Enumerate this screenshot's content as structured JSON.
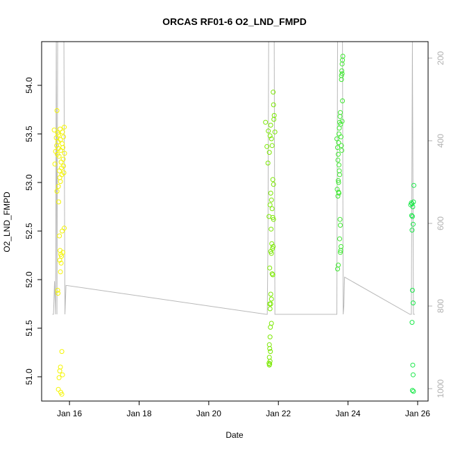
{
  "chart_data": {
    "type": "scatter",
    "title": "ORCAS RF01-6 O2_LND_FMPD",
    "xlabel": "Date",
    "ylabel": "O2_LND_FMPD",
    "x_ticks": [
      "Jan 16",
      "Jan 18",
      "Jan 20",
      "Jan 22",
      "Jan 24",
      "Jan 26"
    ],
    "x_tick_days": [
      16,
      18,
      20,
      22,
      24,
      26
    ],
    "xlim": [
      15.2,
      26.3
    ],
    "ylim": [
      50.75,
      54.45
    ],
    "y_ticks": [
      51.0,
      51.5,
      52.0,
      52.5,
      53.0,
      53.5,
      54.0
    ],
    "y_tick_labels": [
      "51.0",
      "51.5",
      "52.0",
      "52.5",
      "53.0",
      "53.5",
      "54.0"
    ],
    "y2_lim": [
      1030,
      160
    ],
    "y2_ticks": [
      200,
      400,
      600,
      800,
      1000
    ],
    "y2_tick_labels": [
      "200",
      "400",
      "600",
      "800",
      "1000"
    ],
    "series": [
      {
        "color": "#f5f500",
        "points": [
          [
            15.56,
            53.54
          ],
          [
            15.6,
            53.32
          ],
          [
            15.58,
            53.19
          ],
          [
            15.62,
            53.46
          ],
          [
            15.63,
            53.38
          ],
          [
            15.65,
            53.29
          ],
          [
            15.64,
            53.74
          ],
          [
            15.66,
            53.51
          ],
          [
            15.67,
            53.42
          ],
          [
            15.68,
            53.35
          ],
          [
            15.7,
            53.27
          ],
          [
            15.71,
            53.12
          ],
          [
            15.72,
            53.05
          ],
          [
            15.69,
            53.49
          ],
          [
            15.73,
            53.55
          ],
          [
            15.74,
            53.44
          ],
          [
            15.75,
            53.33
          ],
          [
            15.76,
            53.21
          ],
          [
            15.77,
            53.15
          ],
          [
            15.78,
            53.08
          ],
          [
            15.74,
            53.01
          ],
          [
            15.79,
            53.4
          ],
          [
            15.8,
            53.52
          ],
          [
            15.81,
            53.36
          ],
          [
            15.82,
            53.24
          ],
          [
            15.83,
            53.17
          ],
          [
            15.84,
            53.1
          ],
          [
            15.85,
            53.57
          ],
          [
            15.83,
            53.47
          ],
          [
            15.86,
            53.3
          ],
          [
            15.68,
            52.96
          ],
          [
            15.64,
            52.91
          ],
          [
            15.69,
            52.8
          ],
          [
            15.71,
            52.45
          ],
          [
            15.73,
            52.3
          ],
          [
            15.75,
            52.26
          ],
          [
            15.77,
            52.24
          ],
          [
            15.79,
            52.5
          ],
          [
            15.72,
            52.2
          ],
          [
            15.74,
            52.08
          ],
          [
            15.76,
            52.17
          ],
          [
            15.81,
            52.28
          ],
          [
            15.85,
            52.53
          ],
          [
            15.66,
            51.89
          ],
          [
            15.67,
            51.86
          ],
          [
            15.78,
            51.26
          ],
          [
            15.74,
            51.1
          ],
          [
            15.72,
            51.06
          ],
          [
            15.8,
            51.02
          ],
          [
            15.7,
            50.99
          ],
          [
            15.68,
            50.87
          ],
          [
            15.75,
            50.84
          ],
          [
            15.78,
            50.82
          ]
        ]
      },
      {
        "color": "#7ae800",
        "points": [
          [
            21.63,
            53.62
          ],
          [
            21.67,
            53.37
          ],
          [
            21.7,
            53.2
          ],
          [
            21.71,
            53.53
          ],
          [
            21.74,
            53.31
          ],
          [
            21.76,
            53.48
          ],
          [
            21.78,
            53.59
          ],
          [
            21.8,
            53.45
          ],
          [
            21.82,
            53.38
          ],
          [
            21.85,
            53.93
          ],
          [
            21.86,
            53.8
          ],
          [
            21.88,
            53.69
          ],
          [
            21.9,
            53.52
          ],
          [
            21.87,
            53.65
          ],
          [
            21.84,
            53.03
          ],
          [
            21.86,
            52.98
          ],
          [
            21.78,
            52.89
          ],
          [
            21.8,
            52.82
          ],
          [
            21.76,
            52.77
          ],
          [
            21.82,
            52.73
          ],
          [
            21.73,
            52.65
          ],
          [
            21.84,
            52.64
          ],
          [
            21.86,
            52.62
          ],
          [
            21.79,
            52.52
          ],
          [
            21.81,
            52.37
          ],
          [
            21.83,
            52.32
          ],
          [
            21.85,
            52.34
          ],
          [
            21.78,
            52.29
          ],
          [
            21.8,
            52.27
          ],
          [
            21.75,
            52.12
          ],
          [
            21.82,
            52.06
          ],
          [
            21.84,
            52.05
          ],
          [
            21.78,
            51.85
          ],
          [
            21.8,
            51.8
          ],
          [
            21.76,
            51.7
          ],
          [
            21.75,
            51.75
          ],
          [
            21.78,
            51.75
          ],
          [
            21.8,
            51.55
          ],
          [
            21.77,
            51.51
          ],
          [
            21.76,
            51.41
          ],
          [
            21.74,
            51.33
          ],
          [
            21.75,
            51.29
          ],
          [
            21.77,
            51.26
          ],
          [
            21.74,
            51.2
          ],
          [
            21.76,
            51.16
          ],
          [
            21.73,
            51.14
          ],
          [
            21.75,
            51.13
          ],
          [
            21.74,
            51.12
          ]
        ]
      },
      {
        "color": "#3ee830",
        "points": [
          [
            23.68,
            53.45
          ],
          [
            23.7,
            53.36
          ],
          [
            23.71,
            53.23
          ],
          [
            23.72,
            53.29
          ],
          [
            23.74,
            53.5
          ],
          [
            23.73,
            53.41
          ],
          [
            23.75,
            53.56
          ],
          [
            23.76,
            53.62
          ],
          [
            23.77,
            53.68
          ],
          [
            23.78,
            53.72
          ],
          [
            23.79,
            53.6
          ],
          [
            23.8,
            53.47
          ],
          [
            23.81,
            53.38
          ],
          [
            23.82,
            53.33
          ],
          [
            23.83,
            53.63
          ],
          [
            23.84,
            53.84
          ],
          [
            23.74,
            53.18
          ],
          [
            23.75,
            53.12
          ],
          [
            23.76,
            53.08
          ],
          [
            23.72,
            53.02
          ],
          [
            23.73,
            52.9
          ],
          [
            23.71,
            52.86
          ],
          [
            23.69,
            52.93
          ],
          [
            23.74,
            52.89
          ],
          [
            23.77,
            52.62
          ],
          [
            23.78,
            52.56
          ],
          [
            23.76,
            52.42
          ],
          [
            23.79,
            52.3
          ],
          [
            23.8,
            52.34
          ],
          [
            23.78,
            52.28
          ],
          [
            23.81,
            54.06
          ],
          [
            23.82,
            54.15
          ],
          [
            23.83,
            54.22
          ],
          [
            23.84,
            54.26
          ],
          [
            23.85,
            54.3
          ],
          [
            23.83,
            54.12
          ],
          [
            23.81,
            54.1
          ],
          [
            23.72,
            52.15
          ],
          [
            23.7,
            52.11
          ],
          [
            23.73,
            53.0
          ]
        ]
      },
      {
        "color": "#18e848",
        "points": [
          [
            25.8,
            52.77
          ],
          [
            25.82,
            52.79
          ],
          [
            25.84,
            52.78
          ],
          [
            25.86,
            52.75
          ],
          [
            25.88,
            52.8
          ],
          [
            25.83,
            52.66
          ],
          [
            25.85,
            52.65
          ],
          [
            25.87,
            52.57
          ],
          [
            25.84,
            52.51
          ],
          [
            25.89,
            52.97
          ],
          [
            25.85,
            51.89
          ],
          [
            25.87,
            51.76
          ],
          [
            25.84,
            51.56
          ],
          [
            25.86,
            51.12
          ],
          [
            25.87,
            51.02
          ],
          [
            25.85,
            50.86
          ],
          [
            25.88,
            50.85
          ]
        ]
      }
    ],
    "altitude_trace": {
      "color": "#b8b8b8",
      "points": [
        [
          15.51,
          820
        ],
        [
          15.54,
          820
        ],
        [
          15.57,
          740
        ],
        [
          15.6,
          820
        ],
        [
          15.62,
          160
        ],
        [
          15.64,
          820
        ],
        [
          15.66,
          160
        ],
        [
          15.68,
          160
        ],
        [
          15.7,
          160
        ],
        [
          15.72,
          160
        ],
        [
          15.74,
          160
        ],
        [
          15.76,
          160
        ],
        [
          15.78,
          160
        ],
        [
          15.8,
          160
        ],
        [
          15.82,
          160
        ],
        [
          15.84,
          160
        ],
        [
          15.87,
          820
        ],
        [
          15.9,
          750
        ],
        [
          21.65,
          820
        ],
        [
          21.68,
          820
        ],
        [
          21.7,
          640
        ],
        [
          21.72,
          160
        ],
        [
          21.75,
          160
        ],
        [
          21.77,
          160
        ],
        [
          21.8,
          160
        ],
        [
          21.82,
          160
        ],
        [
          21.84,
          160
        ],
        [
          21.86,
          160
        ],
        [
          21.88,
          160
        ],
        [
          21.9,
          820
        ],
        [
          23.65,
          820
        ],
        [
          23.68,
          820
        ],
        [
          23.7,
          160
        ],
        [
          23.72,
          160
        ],
        [
          23.74,
          160
        ],
        [
          23.76,
          160
        ],
        [
          23.78,
          160
        ],
        [
          23.8,
          160
        ],
        [
          23.82,
          160
        ],
        [
          23.84,
          160
        ],
        [
          23.86,
          820
        ],
        [
          23.88,
          800
        ],
        [
          23.9,
          730
        ],
        [
          25.78,
          820
        ],
        [
          25.82,
          820
        ],
        [
          25.85,
          160
        ],
        [
          25.88,
          820
        ],
        [
          25.92,
          820
        ]
      ]
    }
  }
}
